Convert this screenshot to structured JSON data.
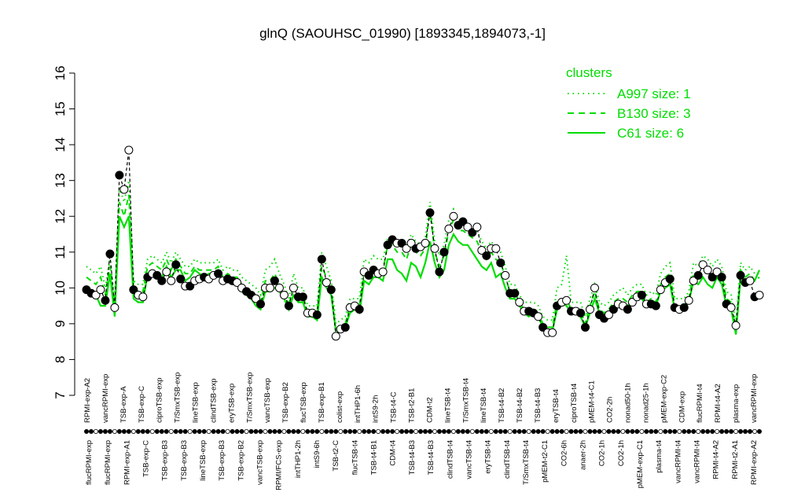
{
  "chart_data": {
    "type": "line",
    "title": "glnQ (SAOUHSC_01990) [1893345,1894073,-1]",
    "xlabel": "",
    "ylabel": "",
    "ylim": [
      7,
      16
    ],
    "yticks": [
      7,
      8,
      9,
      10,
      11,
      12,
      13,
      14,
      15,
      16
    ],
    "grid": false,
    "legend": {
      "title": "clusters",
      "position": "top-right",
      "color": "#00dd00",
      "entries": [
        {
          "label": "A997 size: 1",
          "style": "dotted"
        },
        {
          "label": "B130 size: 3",
          "style": "dashed"
        },
        {
          "label": "C61 size: 6",
          "style": "solid"
        }
      ]
    },
    "top_labels": [
      "RPMI-exp-A2",
      "vancRPMI-exp",
      "TSB-exp-A",
      "TSB-exp-C",
      "ciproTSB-exp",
      "T/SmxTSB-exp",
      "lineTSB-exp",
      "clindTSB-exp",
      "eryTSB-exp",
      "T/SmxTSB-exp",
      "vancTSB-exp",
      "TSB-exp-B2",
      "flucTSB-exp",
      "TSB-exp-B1",
      "colist-exp",
      "intTHP1-6h",
      "intS9-2h",
      "TSB-t4-C",
      "TSB-t2-B1",
      "CDM-t2",
      "lineTSB-t4",
      "T/SmxTSB-t4",
      "lineTSB-t4",
      "TSB-t4-B2",
      "TSB-t4-B2",
      "TSB-t4-B3",
      "eryTSB-t4",
      "ciproTSB-t4",
      "pMEM-t4-C1",
      "CO2-2h",
      "nonad50-1h",
      "nonad25-1h",
      "pMEM-exp-C2",
      "CDM-exp",
      "flucRPMI-t4",
      "RPMI-t4-A2",
      "plasma-exp",
      "vancRPMI-exp"
    ],
    "bottom_labels": [
      "flucRPMI-exp",
      "flucRPMI-exp",
      "RPMI-exp-A1",
      "TSB-exp-C",
      "TSB-exp-B3",
      "TSB-exp-B3",
      "lineTSB-exp",
      "TSB-exp-B3",
      "TSB-exp-B2",
      "vancTSB-exp",
      "RPMI/FCS-exp",
      "intTHP1-2h",
      "intS9-6h",
      "TSB-t2-C",
      "flucTSB-t4",
      "TSB-t4-B1",
      "CDM-t4",
      "TSB-t4-B3",
      "TSB-t4-B3",
      "clindTSB-t4",
      "vancTSB-t4",
      "eryTSB-t4",
      "clindTSB-t4",
      "T/SmxTSB-t4",
      "pMEM-t2-C1",
      "CO2-6h",
      "anaer-2h",
      "CO2-1h",
      "CO2-1h",
      "pMEM-exp-C1",
      "plasma-t4",
      "vancRPMI-t4",
      "vancRPMI-t4",
      "RPMI-t4-A2",
      "RPMI-t2-A1",
      "RPMI-exp-A2"
    ],
    "series": [
      {
        "style": "points-black",
        "values": [
          9.95,
          9.85,
          9.8,
          9.95,
          9.65,
          10.95,
          9.45,
          13.15,
          12.75,
          13.85,
          9.95,
          9.8,
          9.75,
          10.3,
          10.4,
          10.35,
          10.2,
          10.45,
          10.2,
          10.65,
          10.25,
          10.05,
          10.05,
          10.2,
          10.25,
          10.3,
          10.25,
          10.35,
          10.4,
          10.2,
          10.25,
          10.2,
          10.15,
          10.0,
          9.9,
          9.8,
          9.7,
          9.55,
          10.0,
          10.0,
          10.2,
          10.0,
          9.8,
          9.5,
          10.0,
          9.75,
          9.75,
          9.3,
          9.3,
          9.25,
          10.8,
          10.15,
          9.95,
          8.65,
          8.85,
          8.9,
          9.45,
          9.5,
          9.4,
          10.45,
          10.35,
          10.5,
          10.4,
          10.45,
          11.2,
          11.35,
          11.25,
          11.25,
          11.1,
          11.25,
          11.1,
          11.15,
          11.25,
          12.1,
          11.1,
          10.45,
          11.0,
          11.65,
          12.0,
          11.75,
          11.85,
          11.7,
          11.55,
          11.7,
          11.05,
          10.9,
          11.1,
          11.1,
          10.7,
          10.35,
          9.85,
          9.85,
          9.6,
          9.35,
          9.35,
          9.3,
          9.2,
          8.9,
          8.75,
          8.75,
          9.5,
          9.6,
          9.65,
          9.35,
          9.35,
          9.3,
          8.9,
          9.4,
          10.0,
          9.25,
          9.15,
          9.25,
          9.4,
          9.55,
          9.5,
          9.4,
          9.6,
          9.75,
          9.8,
          9.55,
          9.55,
          9.5,
          9.95,
          10.15,
          10.25,
          9.45,
          9.4,
          9.45,
          9.65,
          10.2,
          10.35,
          10.65,
          10.5,
          10.3,
          10.45,
          10.3,
          9.55,
          9.45,
          8.95,
          10.35,
          10.15,
          10.2,
          9.75,
          9.8
        ]
      },
      {
        "style": "solid-green",
        "values": [
          9.9,
          9.8,
          9.8,
          9.5,
          9.5,
          10.4,
          9.2,
          12.0,
          11.7,
          12.0,
          9.7,
          9.6,
          9.6,
          10.4,
          10.5,
          10.4,
          10.3,
          10.6,
          10.3,
          10.5,
          10.5,
          10.2,
          10.3,
          10.5,
          10.4,
          10.3,
          10.4,
          10.4,
          10.5,
          10.2,
          10.3,
          10.1,
          10.1,
          9.9,
          9.8,
          9.7,
          9.5,
          9.4,
          9.9,
          9.9,
          10.0,
          9.9,
          9.7,
          9.4,
          9.8,
          9.6,
          9.6,
          9.2,
          9.2,
          9.1,
          10.3,
          10.0,
          9.8,
          8.8,
          8.8,
          8.9,
          9.3,
          9.4,
          9.3,
          10.2,
          10.1,
          10.3,
          10.3,
          10.2,
          10.8,
          10.8,
          10.5,
          10.4,
          10.2,
          10.7,
          10.6,
          10.3,
          10.7,
          11.3,
          10.7,
          10.3,
          10.5,
          11.2,
          11.5,
          11.3,
          11.2,
          11.2,
          11.0,
          10.8,
          10.6,
          10.5,
          10.7,
          10.3,
          10.4,
          10.0,
          9.7,
          9.7,
          9.5,
          9.3,
          9.2,
          9.3,
          9.2,
          8.9,
          8.8,
          8.8,
          9.4,
          9.6,
          9.5,
          9.3,
          9.3,
          9.2,
          8.9,
          9.3,
          9.7,
          9.3,
          9.2,
          9.3,
          9.5,
          9.6,
          9.6,
          9.5,
          9.7,
          9.8,
          9.7,
          9.5,
          9.6,
          9.5,
          9.9,
          10.0,
          10.1,
          9.4,
          9.3,
          9.4,
          9.6,
          10.2,
          10.1,
          10.3,
          10.1,
          10.0,
          10.3,
          10.1,
          9.5,
          9.4,
          8.7,
          10.3,
          10.2,
          10.3,
          10.2,
          10.5
        ]
      },
      {
        "style": "dashed-green",
        "values": [
          10.3,
          10.2,
          10.1,
          10.3,
          9.8,
          10.6,
          9.4,
          12.4,
          12.0,
          12.6,
          10.0,
          9.9,
          9.9,
          10.6,
          10.7,
          10.6,
          10.5,
          10.8,
          10.5,
          10.8,
          10.6,
          10.4,
          10.4,
          10.6,
          10.5,
          10.5,
          10.5,
          10.5,
          10.6,
          10.3,
          10.4,
          10.3,
          10.3,
          10.1,
          10.0,
          9.9,
          9.8,
          9.6,
          10.2,
          10.2,
          10.4,
          10.1,
          9.9,
          9.5,
          10.1,
          9.8,
          9.8,
          9.3,
          9.3,
          9.3,
          10.6,
          10.3,
          10.0,
          8.8,
          8.9,
          9.0,
          9.5,
          9.5,
          9.5,
          10.5,
          10.4,
          10.6,
          10.5,
          10.5,
          11.2,
          11.2,
          11.0,
          11.0,
          10.8,
          11.2,
          11.0,
          10.9,
          11.1,
          12.2,
          11.0,
          10.6,
          10.9,
          11.6,
          11.9,
          11.6,
          11.6,
          11.5,
          11.4,
          11.3,
          11.0,
          10.8,
          11.0,
          10.8,
          10.7,
          10.3,
          9.9,
          9.9,
          9.6,
          9.4,
          9.4,
          9.4,
          9.3,
          9.0,
          8.9,
          8.9,
          9.6,
          9.7,
          9.7,
          9.4,
          9.4,
          9.4,
          9.0,
          9.5,
          9.9,
          9.4,
          9.3,
          9.4,
          9.6,
          9.7,
          9.7,
          9.6,
          9.8,
          9.9,
          9.9,
          9.6,
          9.7,
          9.6,
          10.1,
          10.3,
          10.4,
          9.5,
          9.5,
          9.5,
          9.7,
          10.4,
          10.4,
          10.6,
          10.5,
          10.3,
          10.5,
          10.4,
          9.7,
          9.6,
          8.8,
          10.5,
          10.3,
          10.4,
          10.2,
          10.3
        ]
      },
      {
        "style": "dotted-green",
        "values": [
          10.6,
          10.5,
          10.4,
          10.6,
          10.0,
          10.8,
          9.6,
          12.8,
          12.4,
          13.0,
          10.2,
          10.1,
          10.1,
          10.8,
          10.9,
          10.8,
          10.7,
          11.0,
          10.7,
          11.0,
          10.8,
          10.6,
          10.6,
          10.8,
          10.7,
          10.7,
          10.7,
          10.7,
          10.8,
          10.5,
          10.6,
          10.5,
          10.5,
          10.3,
          10.2,
          10.1,
          10.0,
          9.8,
          10.5,
          10.6,
          10.8,
          10.4,
          10.1,
          9.7,
          10.4,
          10.0,
          10.0,
          9.5,
          9.5,
          9.5,
          11.0,
          10.6,
          10.2,
          9.0,
          9.1,
          9.2,
          9.7,
          9.7,
          9.7,
          10.8,
          10.7,
          10.9,
          10.8,
          10.8,
          11.4,
          11.4,
          11.2,
          11.3,
          11.1,
          11.5,
          11.3,
          11.2,
          11.4,
          12.4,
          11.3,
          10.9,
          11.2,
          11.9,
          12.2,
          11.9,
          11.9,
          11.8,
          11.7,
          11.6,
          11.3,
          11.1,
          11.3,
          11.1,
          11.0,
          10.6,
          10.1,
          10.1,
          9.8,
          9.6,
          9.6,
          9.6,
          9.5,
          9.2,
          9.1,
          9.1,
          10.0,
          10.1,
          10.9,
          9.6,
          9.6,
          9.6,
          9.2,
          9.7,
          10.1,
          9.6,
          9.5,
          9.6,
          9.8,
          9.9,
          10.0,
          9.8,
          10.0,
          10.1,
          10.1,
          9.8,
          9.9,
          9.8,
          10.4,
          10.6,
          10.7,
          9.7,
          9.7,
          9.7,
          9.9,
          10.7,
          10.6,
          10.9,
          10.8,
          10.6,
          10.8,
          10.6,
          9.9,
          9.8,
          9.0,
          10.7,
          10.5,
          10.6,
          10.4,
          10.4
        ]
      }
    ]
  }
}
